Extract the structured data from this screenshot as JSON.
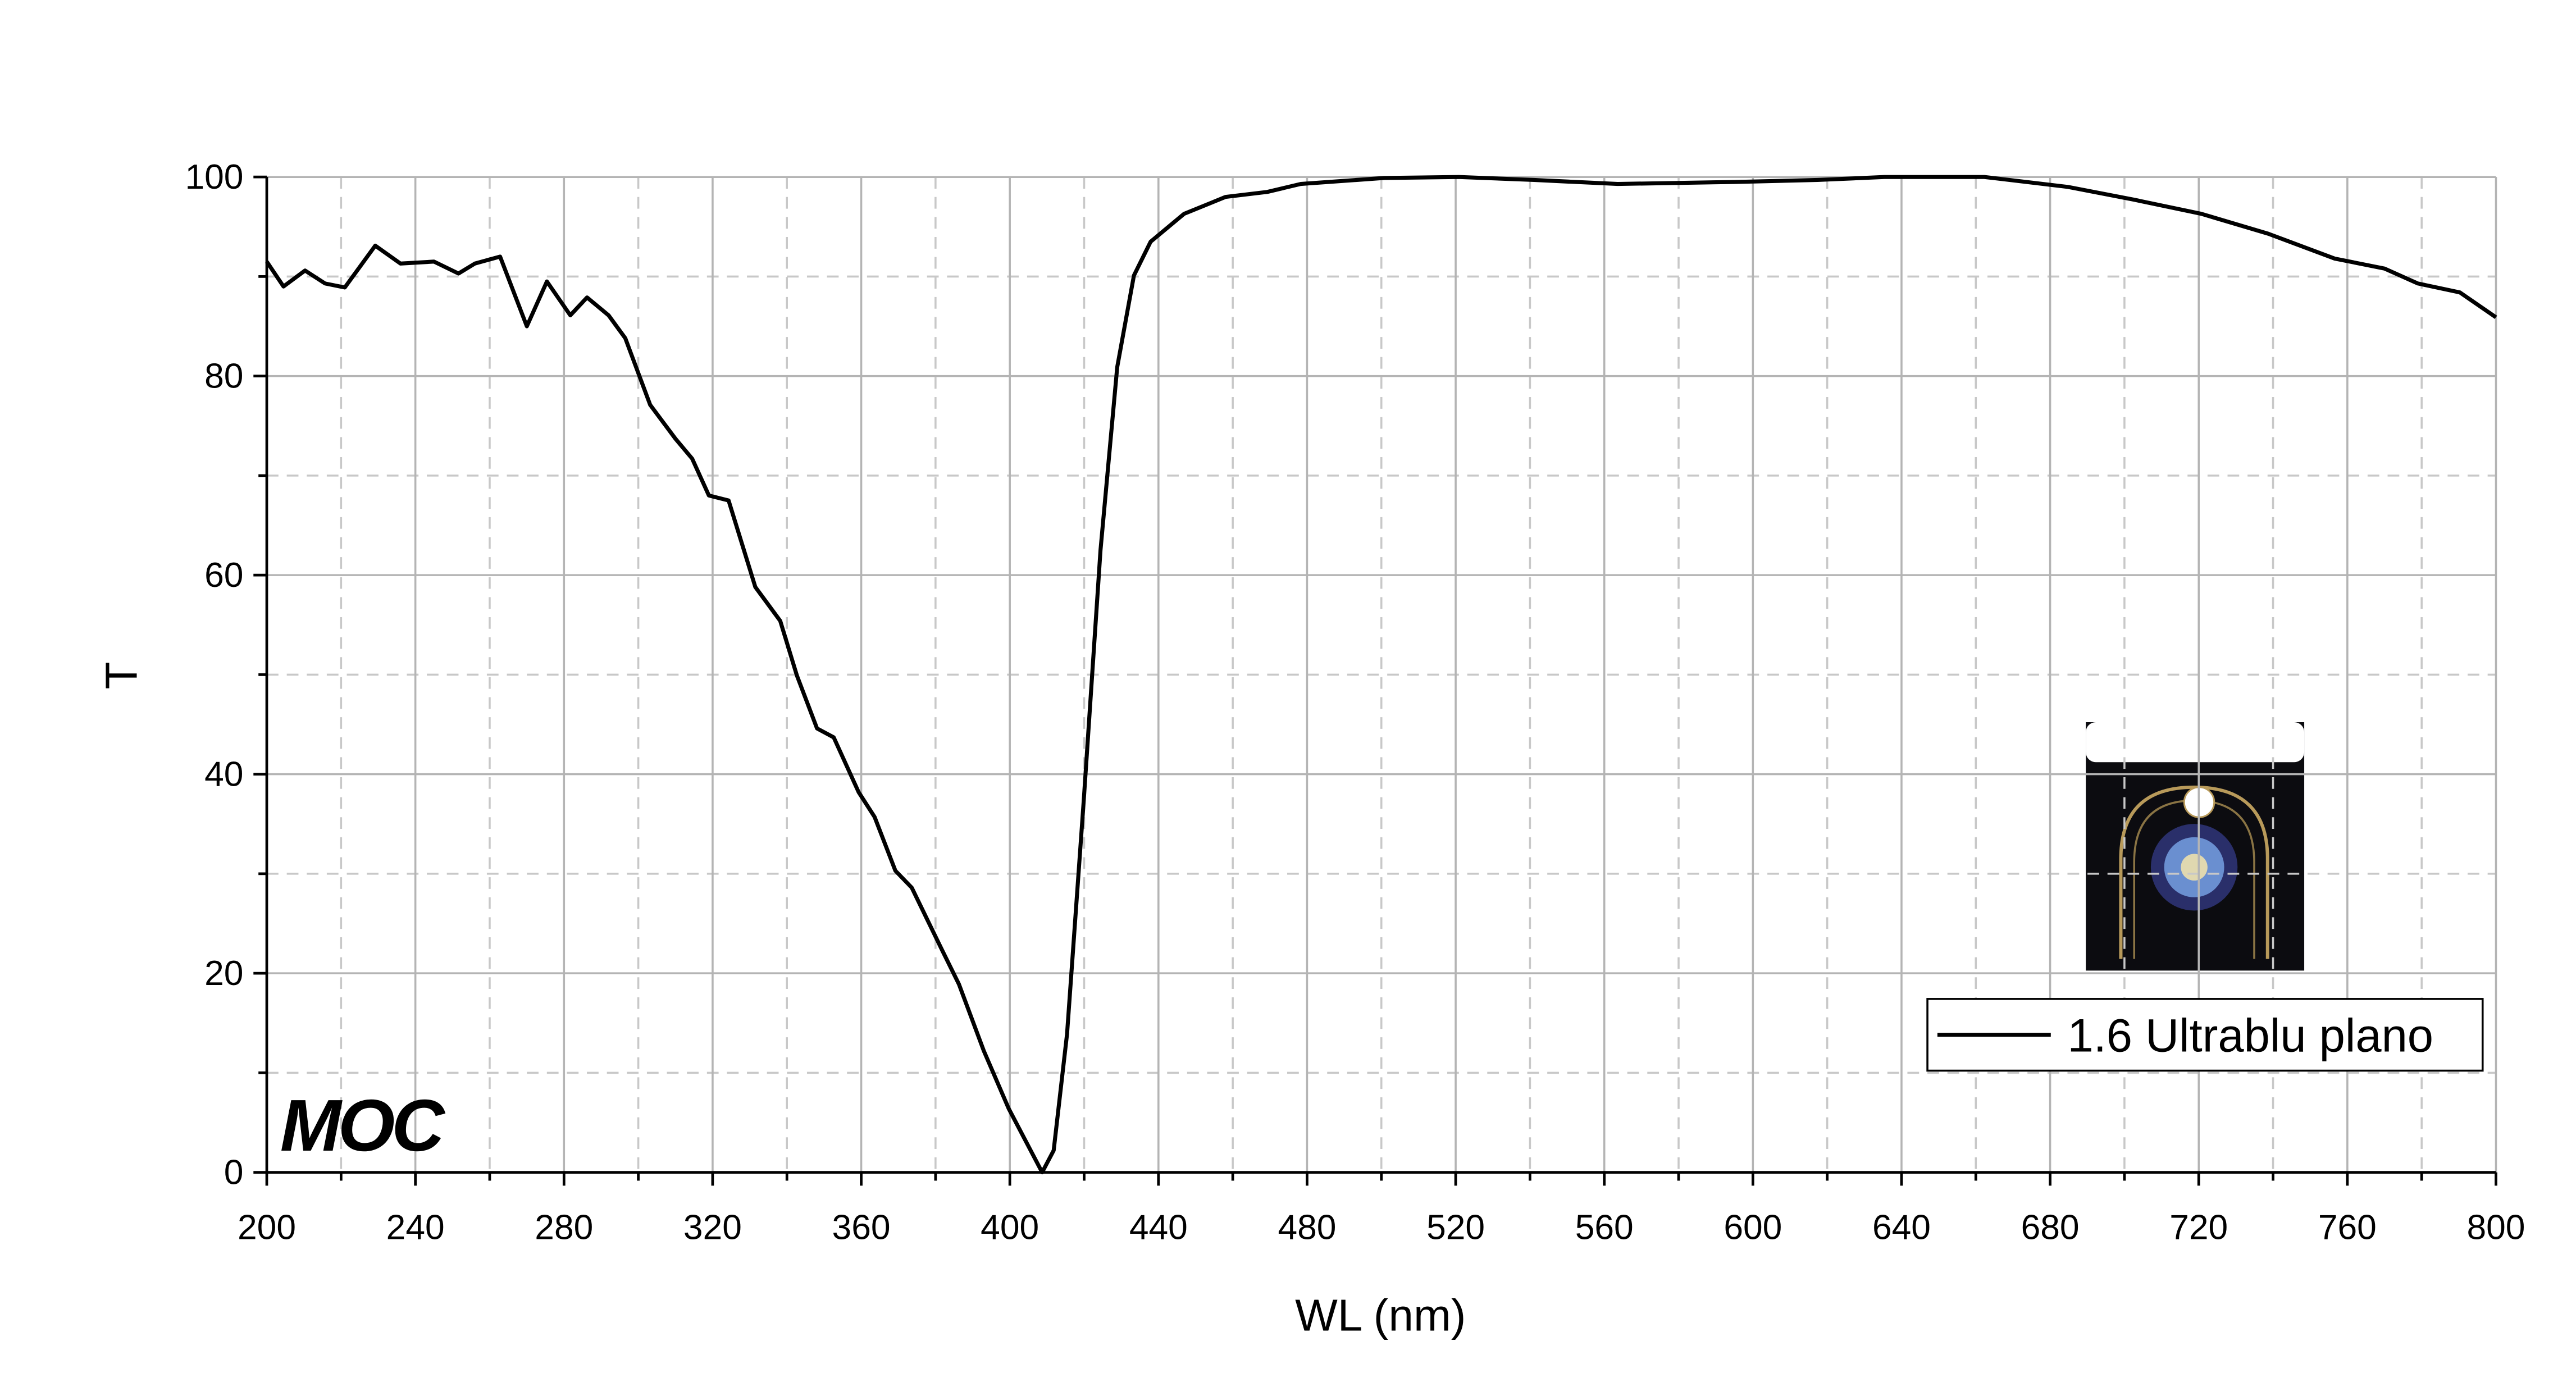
{
  "chart_data": {
    "type": "line",
    "xlabel": "WL (nm)",
    "ylabel": "T",
    "logo": "MOC",
    "x": [
      200,
      204.5,
      210.3,
      215.7,
      221,
      229.2,
      236,
      245,
      251.6,
      256,
      262.8,
      270,
      275.4,
      281.7,
      286.2,
      292,
      296.5,
      303.2,
      310,
      314.5,
      319,
      324.3,
      331.5,
      338.2,
      342.7,
      348.1,
      352.6,
      359.3,
      363.6,
      369.2,
      373.6,
      381.8,
      386.3,
      393,
      399.7,
      405.6,
      408.7,
      411.8,
      415.4,
      419.9,
      424.4,
      428.9,
      433.4,
      437.9,
      446.9,
      458.1,
      469.3,
      478.3,
      500.7,
      520.9,
      541.1,
      563.6,
      595,
      617.4,
      635.4,
      662.3,
      684.8,
      702.8,
      720.7,
      738.7,
      756.6,
      770,
      779,
      790.3,
      800
    ],
    "series": [
      {
        "name": "1.6 Ultrablu plano",
        "color": "#000000",
        "values": [
          91.5,
          89,
          90.6,
          89.3,
          88.9,
          93.1,
          91.3,
          91.5,
          90.3,
          91.3,
          92,
          85,
          89.5,
          86.1,
          87.9,
          86.1,
          83.8,
          77.1,
          73.7,
          71.7,
          68,
          67.5,
          58.8,
          55.4,
          49.9,
          44.6,
          43.7,
          38.2,
          35.7,
          30.3,
          28.6,
          22.3,
          18.9,
          12.2,
          6.4,
          2.2,
          0,
          2.2,
          13.9,
          37.4,
          62.5,
          80.9,
          90.1,
          93.5,
          96.3,
          98,
          98.5,
          99.3,
          99.9,
          100,
          99.7,
          99.3,
          99.5,
          99.7,
          100,
          100,
          99,
          97.7,
          96.3,
          94.3,
          91.8,
          90.8,
          89.3,
          88.4,
          85.9
        ]
      }
    ],
    "xlim": [
      200,
      800
    ],
    "ylim": [
      0,
      100
    ],
    "xticks": [
      200,
      240,
      280,
      320,
      360,
      400,
      440,
      480,
      520,
      560,
      600,
      640,
      680,
      720,
      760,
      800
    ],
    "yticks": [
      0,
      20,
      40,
      60,
      80,
      100
    ],
    "xminor": [
      220,
      260,
      300,
      340,
      380,
      420,
      460,
      500,
      540,
      580,
      620,
      660,
      700,
      740,
      780
    ],
    "yminor": [
      10,
      30,
      50,
      70,
      90
    ],
    "grid": true,
    "legend": "lower right"
  }
}
